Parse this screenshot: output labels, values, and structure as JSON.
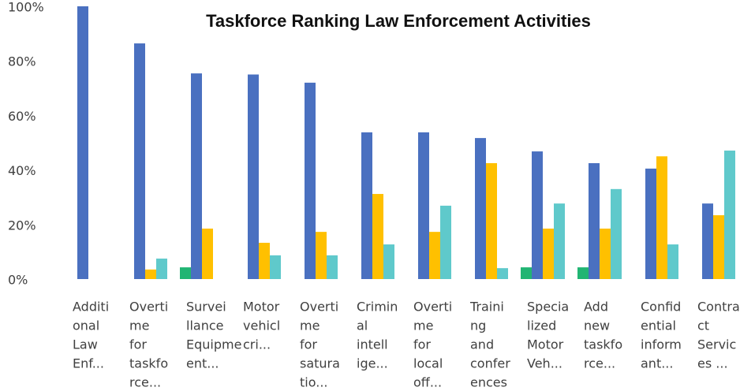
{
  "chart_data": {
    "type": "bar",
    "title": "Taskforce Ranking Law Enforcement Activities",
    "categories": [
      [
        "Additi",
        "onal",
        "Law",
        "Enf..."
      ],
      [
        "Overti",
        "me",
        "for",
        "taskfo",
        "rce..."
      ],
      [
        "Survei",
        "llance",
        "Equipme",
        "ent..."
      ],
      [
        "Motor",
        "vehicl",
        "cri..."
      ],
      [
        "Overti",
        "me",
        "for",
        "satura",
        "tio..."
      ],
      [
        "Crimin",
        "al",
        "intell",
        "ige..."
      ],
      [
        "Overti",
        "me",
        "for",
        "local",
        "off..."
      ],
      [
        "Traini",
        "ng",
        "and",
        "confer",
        "ences"
      ],
      [
        "Specia",
        "lized",
        "Motor",
        "Veh..."
      ],
      [
        "Add",
        "new",
        "taskfo",
        "rce..."
      ],
      [
        "Confid",
        "ential",
        "inform",
        "ant..."
      ],
      [
        "Contra",
        "ct",
        "Servic",
        "es ..."
      ]
    ],
    "series": [
      {
        "color": "#21b573",
        "values": [
          0,
          0,
          4.3,
          0,
          0,
          0,
          0,
          0,
          4.3,
          4.3,
          0,
          0
        ]
      },
      {
        "color": "#4a70c0",
        "values": [
          100,
          86.4,
          75.4,
          75,
          72,
          53.8,
          53.8,
          51.7,
          46.8,
          42.5,
          40.5,
          27.7
        ]
      },
      {
        "color": "#ffc000",
        "values": [
          0,
          3.5,
          18.5,
          13.3,
          17.3,
          31.2,
          17.3,
          42.5,
          18.5,
          18.5,
          45,
          23.4
        ]
      },
      {
        "color": "#5fc9cb",
        "values": [
          0,
          7.5,
          0,
          8.7,
          8.7,
          12.7,
          26.9,
          4,
          27.7,
          33,
          12.7,
          47.1
        ]
      }
    ],
    "ylim": [
      0,
      100
    ],
    "yticks": [
      {
        "value": 0,
        "label": "0%"
      },
      {
        "value": 20,
        "label": "20%"
      },
      {
        "value": 40,
        "label": "40%"
      },
      {
        "value": 60,
        "label": "60%"
      },
      {
        "value": 80,
        "label": "80%"
      },
      {
        "value": 100,
        "label": "100%"
      }
    ]
  }
}
